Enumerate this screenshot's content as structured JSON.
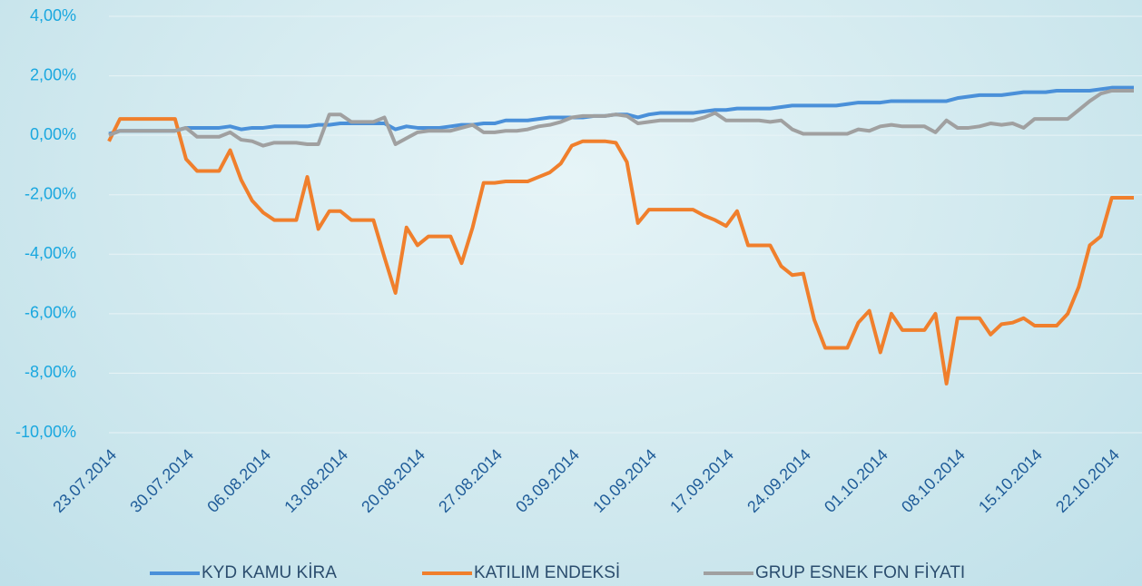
{
  "chart_data": {
    "type": "line",
    "categories": [
      "23.07.2014",
      null,
      null,
      null,
      null,
      null,
      null,
      "30.07.2014",
      null,
      null,
      null,
      null,
      null,
      null,
      "06.08.2014",
      null,
      null,
      null,
      null,
      null,
      null,
      "13.08.2014",
      null,
      null,
      null,
      null,
      null,
      null,
      "20.08.2014",
      null,
      null,
      null,
      null,
      null,
      null,
      "27.08.2014",
      null,
      null,
      null,
      null,
      null,
      null,
      "03.09.2014",
      null,
      null,
      null,
      null,
      null,
      null,
      "10.09.2014",
      null,
      null,
      null,
      null,
      null,
      null,
      "17.09.2014",
      null,
      null,
      null,
      null,
      null,
      null,
      "24.09.2014",
      null,
      null,
      null,
      null,
      null,
      null,
      "01.10.2014",
      null,
      null,
      null,
      null,
      null,
      null,
      "08.10.2014",
      null,
      null,
      null,
      null,
      null,
      null,
      "15.10.2014",
      null,
      null,
      null,
      null,
      null,
      null,
      "22.10.2014",
      null,
      null
    ],
    "series": [
      {
        "name": "KYD KAMU KİRA",
        "color": "#4a90d9",
        "values": [
          0.05,
          0.15,
          0.15,
          0.15,
          0.15,
          0.15,
          0.15,
          0.25,
          0.25,
          0.25,
          0.25,
          0.3,
          0.2,
          0.25,
          0.25,
          0.3,
          0.3,
          0.3,
          0.3,
          0.35,
          0.35,
          0.4,
          0.4,
          0.4,
          0.4,
          0.4,
          0.2,
          0.3,
          0.25,
          0.25,
          0.25,
          0.3,
          0.35,
          0.35,
          0.4,
          0.4,
          0.5,
          0.5,
          0.5,
          0.55,
          0.6,
          0.6,
          0.6,
          0.6,
          0.65,
          0.65,
          0.7,
          0.7,
          0.6,
          0.7,
          0.75,
          0.75,
          0.75,
          0.75,
          0.8,
          0.85,
          0.85,
          0.9,
          0.9,
          0.9,
          0.9,
          0.95,
          1.0,
          1.0,
          1.0,
          1.0,
          1.0,
          1.05,
          1.1,
          1.1,
          1.1,
          1.15,
          1.15,
          1.15,
          1.15,
          1.15,
          1.15,
          1.25,
          1.3,
          1.35,
          1.35,
          1.35,
          1.4,
          1.45,
          1.45,
          1.45,
          1.5,
          1.5,
          1.5,
          1.5,
          1.55,
          1.6,
          1.6,
          1.6
        ]
      },
      {
        "name": "KATILIM ENDEKSİ",
        "color": "#f07f2c",
        "values": [
          -0.2,
          0.55,
          0.55,
          0.55,
          0.55,
          0.55,
          0.55,
          -0.8,
          -1.2,
          -1.2,
          -1.2,
          -0.5,
          -1.5,
          -2.2,
          -2.6,
          -2.85,
          -2.85,
          -2.85,
          -1.4,
          -3.15,
          -2.55,
          -2.55,
          -2.85,
          -2.85,
          -2.85,
          -4.1,
          -5.3,
          -3.1,
          -3.7,
          -3.4,
          -3.4,
          -3.4,
          -4.3,
          -3.1,
          -1.6,
          -1.6,
          -1.55,
          -1.55,
          -1.55,
          -1.4,
          -1.25,
          -0.95,
          -0.35,
          -0.2,
          -0.2,
          -0.2,
          -0.25,
          -0.9,
          -2.95,
          -2.5,
          -2.5,
          -2.5,
          -2.5,
          -2.5,
          -2.7,
          -2.85,
          -3.05,
          -2.55,
          -3.7,
          -3.7,
          -3.7,
          -4.4,
          -4.7,
          -4.65,
          -6.2,
          -7.15,
          -7.15,
          -7.15,
          -6.3,
          -5.9,
          -7.3,
          -6.0,
          -6.55,
          -6.55,
          -6.55,
          -6.0,
          -8.35,
          -6.15,
          -6.15,
          -6.15,
          -6.7,
          -6.35,
          -6.3,
          -6.15,
          -6.4,
          -6.4,
          -6.4,
          -6.0,
          -5.1,
          -3.7,
          -3.4,
          -2.1,
          -2.1,
          -2.1
        ]
      },
      {
        "name": "GRUP ESNEK FON FİYATI",
        "color": "#a0a0a0",
        "values": [
          0,
          0.15,
          0.15,
          0.15,
          0.15,
          0.15,
          0.15,
          0.25,
          -0.05,
          -0.05,
          -0.05,
          0.1,
          -0.15,
          -0.2,
          -0.35,
          -0.25,
          -0.25,
          -0.25,
          -0.3,
          -0.3,
          0.7,
          0.7,
          0.45,
          0.45,
          0.45,
          0.6,
          -0.3,
          -0.1,
          0.1,
          0.15,
          0.15,
          0.15,
          0.25,
          0.35,
          0.1,
          0.1,
          0.15,
          0.15,
          0.2,
          0.3,
          0.35,
          0.45,
          0.6,
          0.65,
          0.65,
          0.65,
          0.7,
          0.65,
          0.4,
          0.45,
          0.5,
          0.5,
          0.5,
          0.5,
          0.6,
          0.75,
          0.5,
          0.5,
          0.5,
          0.5,
          0.45,
          0.5,
          0.2,
          0.05,
          0.05,
          0.05,
          0.05,
          0.05,
          0.2,
          0.15,
          0.3,
          0.35,
          0.3,
          0.3,
          0.3,
          0.1,
          0.5,
          0.25,
          0.25,
          0.3,
          0.4,
          0.35,
          0.4,
          0.25,
          0.55,
          0.55,
          0.55,
          0.55,
          0.85,
          1.15,
          1.4,
          1.5,
          1.5,
          1.5
        ]
      }
    ],
    "ylim": [
      -10,
      4
    ],
    "yticks": [
      {
        "value": -10,
        "label": "-10,00%"
      },
      {
        "value": -8,
        "label": "-8,00%"
      },
      {
        "value": -6,
        "label": "-6,00%"
      },
      {
        "value": -4,
        "label": "-4,00%"
      },
      {
        "value": -2,
        "label": "-2,00%"
      },
      {
        "value": 0,
        "label": "0,00%"
      },
      {
        "value": 2,
        "label": "2,00%"
      },
      {
        "value": 4,
        "label": "4,00%"
      }
    ],
    "grid": true,
    "legend": "bottom"
  }
}
